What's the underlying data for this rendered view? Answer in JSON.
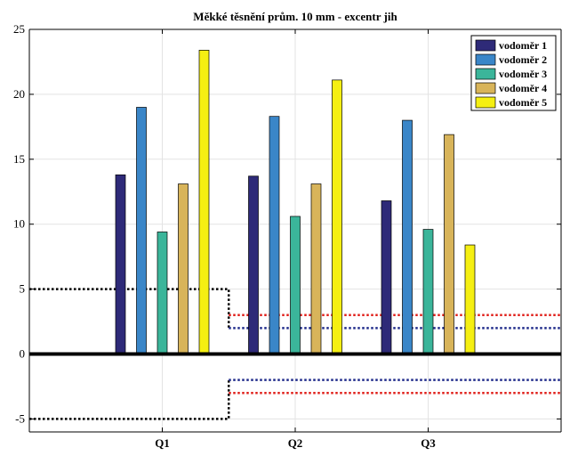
{
  "chart_data": {
    "type": "bar",
    "title": "Měkké těsnění prům. 10 mm - excentr jih",
    "xlabel": "",
    "ylabel": "",
    "categories": [
      "Q1",
      "Q2",
      "Q3"
    ],
    "ylim": [
      -6,
      25
    ],
    "yticks": [
      -5,
      0,
      5,
      10,
      15,
      20,
      25
    ],
    "grid": true,
    "legend_position": "top-right",
    "series": [
      {
        "name": "vodoměr 1",
        "color": "#2e2a78",
        "values": [
          13.8,
          13.7,
          11.8
        ]
      },
      {
        "name": "vodoměr 2",
        "color": "#3a86c8",
        "values": [
          19.0,
          18.3,
          18.0
        ]
      },
      {
        "name": "vodoměr 3",
        "color": "#3bb59a",
        "values": [
          9.4,
          10.6,
          9.6
        ]
      },
      {
        "name": "vodoměr 4",
        "color": "#d8b45a",
        "values": [
          13.1,
          13.1,
          16.9
        ]
      },
      {
        "name": "vodoměr 5",
        "color": "#f5ef12",
        "values": [
          23.4,
          21.1,
          8.4
        ]
      }
    ],
    "reference_lines": [
      {
        "color": "#000000",
        "style": "dotted",
        "points": [
          [
            0,
            5
          ],
          [
            1.5,
            5
          ],
          [
            1.5,
            2
          ]
        ]
      },
      {
        "color": "#000000",
        "style": "dotted",
        "points": [
          [
            0,
            -5
          ],
          [
            1.5,
            -5
          ],
          [
            1.5,
            -2
          ]
        ]
      },
      {
        "color": "#1f2a8a",
        "style": "dotted",
        "points": [
          [
            1.5,
            2
          ],
          [
            4,
            2
          ]
        ]
      },
      {
        "color": "#1f2a8a",
        "style": "dotted",
        "points": [
          [
            1.5,
            -2
          ],
          [
            4,
            -2
          ]
        ]
      },
      {
        "color": "#e0201b",
        "style": "dotted",
        "points": [
          [
            1.5,
            3
          ],
          [
            4,
            3
          ]
        ]
      },
      {
        "color": "#e0201b",
        "style": "dotted",
        "points": [
          [
            1.5,
            -3
          ],
          [
            4,
            -3
          ]
        ]
      }
    ],
    "zero_line": true
  }
}
